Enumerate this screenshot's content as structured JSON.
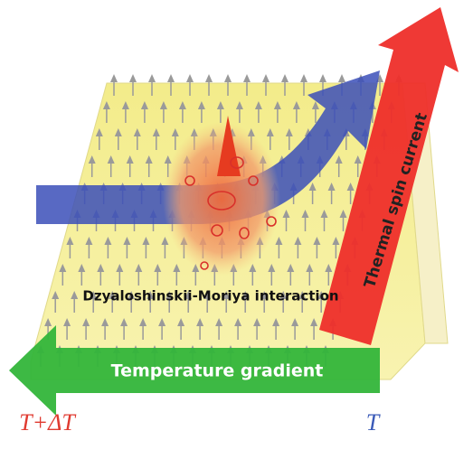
{
  "labels": {
    "spin_current": "Thermal spin current",
    "dmi": "Dzyaloshinskii-Moriya interaction",
    "gradient": "Temperature gradient",
    "hot": "T+ΔT",
    "cold": "T"
  }
}
